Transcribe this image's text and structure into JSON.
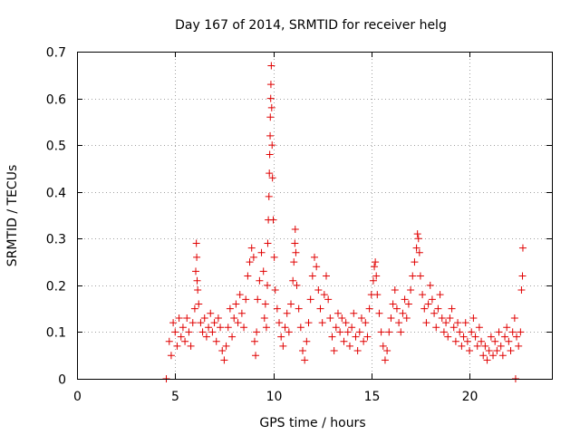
{
  "chart_data": {
    "type": "scatter",
    "title": "Day 167 of 2014, SRMTID for receiver helg",
    "xlabel": "GPS time / hours",
    "ylabel": "SRMTID / TECUs",
    "xlim": [
      0,
      24.2
    ],
    "ylim": [
      0,
      0.7
    ],
    "xticks": [
      0,
      5,
      10,
      15,
      20
    ],
    "yticks": [
      0,
      0.1,
      0.2,
      0.3,
      0.4,
      0.5,
      0.6,
      0.7
    ],
    "xtick_labels": [
      "0",
      "5",
      "10",
      "15",
      "20"
    ],
    "ytick_labels": [
      "0",
      "0.1",
      "0.2",
      "0.3",
      "0.4",
      "0.5",
      "0.6",
      "0.7"
    ],
    "grid": true,
    "marker": "plus",
    "color": "#e00000",
    "series": [
      {
        "name": "helg",
        "points": [
          [
            4.55,
            0.0
          ],
          [
            22.35,
            0.0
          ],
          [
            4.7,
            0.08
          ],
          [
            4.8,
            0.05
          ],
          [
            4.9,
            0.12
          ],
          [
            5.0,
            0.1
          ],
          [
            5.1,
            0.07
          ],
          [
            5.2,
            0.13
          ],
          [
            5.3,
            0.09
          ],
          [
            5.4,
            0.11
          ],
          [
            5.5,
            0.08
          ],
          [
            5.6,
            0.13
          ],
          [
            5.7,
            0.1
          ],
          [
            5.8,
            0.07
          ],
          [
            5.9,
            0.12
          ],
          [
            6.0,
            0.15
          ],
          [
            6.05,
            0.23
          ],
          [
            6.08,
            0.29
          ],
          [
            6.1,
            0.26
          ],
          [
            6.12,
            0.21
          ],
          [
            6.15,
            0.19
          ],
          [
            6.2,
            0.16
          ],
          [
            6.3,
            0.12
          ],
          [
            6.4,
            0.1
          ],
          [
            6.5,
            0.13
          ],
          [
            6.6,
            0.09
          ],
          [
            6.7,
            0.11
          ],
          [
            6.8,
            0.14
          ],
          [
            6.9,
            0.1
          ],
          [
            7.0,
            0.12
          ],
          [
            7.1,
            0.08
          ],
          [
            7.2,
            0.13
          ],
          [
            7.3,
            0.11
          ],
          [
            7.4,
            0.06
          ],
          [
            7.5,
            0.04
          ],
          [
            7.6,
            0.07
          ],
          [
            7.7,
            0.11
          ],
          [
            7.8,
            0.15
          ],
          [
            7.9,
            0.09
          ],
          [
            8.0,
            0.13
          ],
          [
            8.1,
            0.16
          ],
          [
            8.2,
            0.12
          ],
          [
            8.3,
            0.18
          ],
          [
            8.4,
            0.14
          ],
          [
            8.5,
            0.11
          ],
          [
            8.6,
            0.17
          ],
          [
            8.7,
            0.22
          ],
          [
            8.8,
            0.25
          ],
          [
            8.9,
            0.28
          ],
          [
            9.0,
            0.26
          ],
          [
            9.05,
            0.08
          ],
          [
            9.1,
            0.05
          ],
          [
            9.15,
            0.1
          ],
          [
            9.2,
            0.17
          ],
          [
            9.3,
            0.21
          ],
          [
            9.4,
            0.27
          ],
          [
            9.5,
            0.23
          ],
          [
            9.55,
            0.13
          ],
          [
            9.6,
            0.16
          ],
          [
            9.65,
            0.11
          ],
          [
            9.7,
            0.2
          ],
          [
            9.72,
            0.29
          ],
          [
            9.75,
            0.34
          ],
          [
            9.78,
            0.39
          ],
          [
            9.8,
            0.44
          ],
          [
            9.82,
            0.48
          ],
          [
            9.84,
            0.52
          ],
          [
            9.85,
            0.56
          ],
          [
            9.87,
            0.6
          ],
          [
            9.88,
            0.63
          ],
          [
            9.9,
            0.67
          ],
          [
            9.92,
            0.58
          ],
          [
            9.94,
            0.5
          ],
          [
            9.96,
            0.43
          ],
          [
            10.0,
            0.34
          ],
          [
            10.05,
            0.26
          ],
          [
            10.1,
            0.19
          ],
          [
            10.2,
            0.15
          ],
          [
            10.3,
            0.12
          ],
          [
            10.4,
            0.09
          ],
          [
            10.5,
            0.07
          ],
          [
            10.6,
            0.11
          ],
          [
            10.7,
            0.14
          ],
          [
            10.8,
            0.1
          ],
          [
            10.9,
            0.16
          ],
          [
            11.0,
            0.21
          ],
          [
            11.05,
            0.25
          ],
          [
            11.1,
            0.29
          ],
          [
            11.12,
            0.32
          ],
          [
            11.15,
            0.27
          ],
          [
            11.2,
            0.2
          ],
          [
            11.3,
            0.15
          ],
          [
            11.4,
            0.11
          ],
          [
            11.5,
            0.06
          ],
          [
            11.6,
            0.04
          ],
          [
            11.7,
            0.08
          ],
          [
            11.8,
            0.12
          ],
          [
            11.9,
            0.17
          ],
          [
            12.0,
            0.22
          ],
          [
            12.1,
            0.26
          ],
          [
            12.2,
            0.24
          ],
          [
            12.3,
            0.19
          ],
          [
            12.4,
            0.15
          ],
          [
            12.5,
            0.12
          ],
          [
            12.6,
            0.18
          ],
          [
            12.7,
            0.22
          ],
          [
            12.8,
            0.17
          ],
          [
            12.9,
            0.13
          ],
          [
            13.0,
            0.09
          ],
          [
            13.1,
            0.06
          ],
          [
            13.2,
            0.11
          ],
          [
            13.3,
            0.14
          ],
          [
            13.4,
            0.1
          ],
          [
            13.5,
            0.13
          ],
          [
            13.6,
            0.08
          ],
          [
            13.7,
            0.12
          ],
          [
            13.8,
            0.1
          ],
          [
            13.9,
            0.07
          ],
          [
            14.0,
            0.11
          ],
          [
            14.1,
            0.14
          ],
          [
            14.2,
            0.09
          ],
          [
            14.3,
            0.06
          ],
          [
            14.4,
            0.1
          ],
          [
            14.5,
            0.13
          ],
          [
            14.6,
            0.08
          ],
          [
            14.7,
            0.12
          ],
          [
            14.8,
            0.09
          ],
          [
            14.9,
            0.15
          ],
          [
            15.0,
            0.18
          ],
          [
            15.1,
            0.21
          ],
          [
            15.15,
            0.24
          ],
          [
            15.2,
            0.25
          ],
          [
            15.25,
            0.22
          ],
          [
            15.3,
            0.18
          ],
          [
            15.4,
            0.14
          ],
          [
            15.5,
            0.1
          ],
          [
            15.6,
            0.07
          ],
          [
            15.7,
            0.04
          ],
          [
            15.8,
            0.06
          ],
          [
            15.9,
            0.1
          ],
          [
            16.0,
            0.13
          ],
          [
            16.1,
            0.16
          ],
          [
            16.2,
            0.19
          ],
          [
            16.3,
            0.15
          ],
          [
            16.4,
            0.12
          ],
          [
            16.5,
            0.1
          ],
          [
            16.6,
            0.14
          ],
          [
            16.7,
            0.17
          ],
          [
            16.8,
            0.13
          ],
          [
            16.9,
            0.16
          ],
          [
            17.0,
            0.19
          ],
          [
            17.1,
            0.22
          ],
          [
            17.2,
            0.25
          ],
          [
            17.3,
            0.28
          ],
          [
            17.35,
            0.31
          ],
          [
            17.4,
            0.3
          ],
          [
            17.45,
            0.27
          ],
          [
            17.5,
            0.22
          ],
          [
            17.6,
            0.18
          ],
          [
            17.7,
            0.15
          ],
          [
            17.8,
            0.12
          ],
          [
            17.9,
            0.16
          ],
          [
            18.0,
            0.2
          ],
          [
            18.1,
            0.17
          ],
          [
            18.2,
            0.14
          ],
          [
            18.3,
            0.11
          ],
          [
            18.4,
            0.15
          ],
          [
            18.5,
            0.18
          ],
          [
            18.6,
            0.13
          ],
          [
            18.7,
            0.1
          ],
          [
            18.8,
            0.12
          ],
          [
            18.9,
            0.09
          ],
          [
            19.0,
            0.13
          ],
          [
            19.1,
            0.15
          ],
          [
            19.2,
            0.11
          ],
          [
            19.3,
            0.08
          ],
          [
            19.4,
            0.12
          ],
          [
            19.5,
            0.1
          ],
          [
            19.6,
            0.07
          ],
          [
            19.7,
            0.09
          ],
          [
            19.8,
            0.12
          ],
          [
            19.9,
            0.08
          ],
          [
            20.0,
            0.06
          ],
          [
            20.1,
            0.1
          ],
          [
            20.2,
            0.13
          ],
          [
            20.3,
            0.09
          ],
          [
            20.4,
            0.07
          ],
          [
            20.5,
            0.11
          ],
          [
            20.6,
            0.08
          ],
          [
            20.7,
            0.05
          ],
          [
            20.8,
            0.07
          ],
          [
            20.9,
            0.04
          ],
          [
            21.0,
            0.06
          ],
          [
            21.1,
            0.09
          ],
          [
            21.2,
            0.05
          ],
          [
            21.3,
            0.08
          ],
          [
            21.4,
            0.06
          ],
          [
            21.5,
            0.1
          ],
          [
            21.6,
            0.07
          ],
          [
            21.7,
            0.05
          ],
          [
            21.8,
            0.09
          ],
          [
            21.9,
            0.11
          ],
          [
            22.0,
            0.08
          ],
          [
            22.1,
            0.06
          ],
          [
            22.2,
            0.1
          ],
          [
            22.3,
            0.13
          ],
          [
            22.4,
            0.09
          ],
          [
            22.5,
            0.07
          ],
          [
            22.6,
            0.1
          ],
          [
            22.65,
            0.19
          ],
          [
            22.7,
            0.22
          ],
          [
            22.72,
            0.28
          ]
        ]
      }
    ]
  }
}
